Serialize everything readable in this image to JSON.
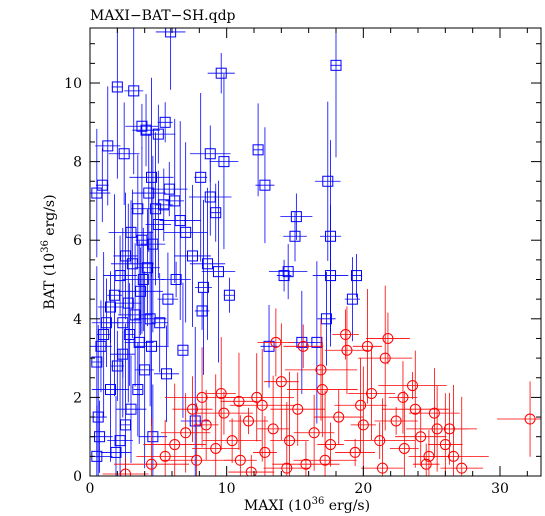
{
  "chart_data": {
    "type": "scatter",
    "title": "MAXI−BAT−SH.qdp",
    "xlabel": {
      "pre": "MAXI (10",
      "sup": "36",
      "post": " erg/s)"
    },
    "ylabel": {
      "pre": "BAT (10",
      "sup": "36",
      "post": " erg/s)"
    },
    "xlim": [
      0,
      33
    ],
    "ylim": [
      0,
      11.4
    ],
    "x_ticks": [
      "0",
      "10",
      "20",
      "30"
    ],
    "x_tick_values": [
      0,
      10,
      20,
      30
    ],
    "y_ticks": [
      "0",
      "2",
      "4",
      "6",
      "8",
      "10"
    ],
    "y_tick_values": [
      0,
      2,
      4,
      6,
      8,
      10
    ],
    "grid": false,
    "legend": "none",
    "series": [
      {
        "marker": "square",
        "color": "#0000ff",
        "points": [
          [
            0.5,
            7.2
          ],
          [
            0.9,
            7.4
          ],
          [
            1.3,
            8.4
          ],
          [
            2.0,
            9.9
          ],
          [
            2.5,
            8.2
          ],
          [
            3.2,
            9.8
          ],
          [
            3.8,
            8.9
          ],
          [
            4.1,
            8.8
          ],
          [
            5.0,
            8.7
          ],
          [
            5.9,
            11.3
          ],
          [
            5.5,
            9.0
          ],
          [
            4.5,
            7.6
          ],
          [
            3.5,
            6.8
          ],
          [
            3.0,
            6.2
          ],
          [
            2.6,
            5.6
          ],
          [
            2.2,
            5.1
          ],
          [
            1.8,
            4.6
          ],
          [
            1.5,
            4.3
          ],
          [
            1.2,
            3.9
          ],
          [
            1.0,
            3.6
          ],
          [
            0.8,
            3.3
          ],
          [
            0.5,
            2.9
          ],
          [
            0.6,
            1.5
          ],
          [
            0.7,
            1.0
          ],
          [
            0.5,
            0.5
          ],
          [
            1.5,
            2.2
          ],
          [
            2.0,
            2.8
          ],
          [
            2.4,
            3.1
          ],
          [
            2.9,
            3.6
          ],
          [
            3.3,
            4.1
          ],
          [
            3.7,
            4.7
          ],
          [
            4.2,
            5.3
          ],
          [
            4.6,
            5.9
          ],
          [
            5.0,
            6.4
          ],
          [
            5.4,
            6.9
          ],
          [
            5.8,
            7.3
          ],
          [
            6.2,
            7.0
          ],
          [
            6.6,
            6.5
          ],
          [
            7.0,
            6.2
          ],
          [
            7.5,
            5.6
          ],
          [
            6.3,
            5.0
          ],
          [
            5.7,
            4.5
          ],
          [
            5.1,
            3.9
          ],
          [
            4.5,
            3.3
          ],
          [
            4.0,
            2.7
          ],
          [
            3.5,
            2.2
          ],
          [
            3.0,
            1.7
          ],
          [
            2.6,
            1.3
          ],
          [
            2.2,
            0.9
          ],
          [
            1.9,
            0.6
          ],
          [
            8.1,
            7.6
          ],
          [
            8.8,
            7.1
          ],
          [
            9.2,
            6.7
          ],
          [
            8.6,
            5.4
          ],
          [
            9.4,
            5.2
          ],
          [
            8.3,
            4.8
          ],
          [
            8.2,
            4.2
          ],
          [
            10.2,
            4.6
          ],
          [
            9.8,
            8.0
          ],
          [
            8.8,
            8.2
          ],
          [
            9.6,
            10.25
          ],
          [
            12.8,
            7.4
          ],
          [
            12.3,
            8.3
          ],
          [
            13.1,
            3.3
          ],
          [
            14.5,
            5.2
          ],
          [
            14.2,
            5.1
          ],
          [
            15.1,
            6.6
          ],
          [
            15.0,
            6.1
          ],
          [
            15.5,
            3.4
          ],
          [
            16.6,
            3.4
          ],
          [
            17.4,
            7.5
          ],
          [
            17.6,
            6.1
          ],
          [
            17.6,
            5.1
          ],
          [
            17.3,
            4.0
          ],
          [
            18.0,
            10.45
          ],
          [
            19.5,
            5.1
          ],
          [
            19.2,
            4.5
          ],
          [
            6.8,
            3.2
          ],
          [
            5.6,
            2.6
          ],
          [
            7.7,
            1.4
          ],
          [
            4.6,
            1.0
          ],
          [
            3.8,
            6.0
          ],
          [
            4.3,
            7.2
          ],
          [
            3.1,
            5.4
          ],
          [
            2.8,
            4.4
          ],
          [
            3.9,
            5.0
          ],
          [
            4.8,
            6.8
          ],
          [
            2.4,
            3.9
          ],
          [
            3.6,
            3.4
          ],
          [
            4.4,
            4.0
          ]
        ]
      },
      {
        "marker": "circle",
        "color": "#ff0000",
        "points": [
          [
            2.6,
            0.05
          ],
          [
            4.5,
            0.3
          ],
          [
            5.5,
            0.5
          ],
          [
            6.2,
            0.8
          ],
          [
            7.0,
            1.1
          ],
          [
            7.8,
            0.4
          ],
          [
            8.5,
            1.3
          ],
          [
            9.2,
            0.7
          ],
          [
            9.8,
            1.6
          ],
          [
            10.4,
            0.9
          ],
          [
            11.0,
            0.4
          ],
          [
            11.6,
            1.4
          ],
          [
            12.2,
            2.0
          ],
          [
            12.8,
            0.6
          ],
          [
            13.4,
            1.2
          ],
          [
            14.0,
            2.4
          ],
          [
            14.6,
            0.9
          ],
          [
            15.2,
            1.7
          ],
          [
            15.8,
            0.3
          ],
          [
            16.4,
            1.1
          ],
          [
            17.0,
            2.2
          ],
          [
            17.6,
            0.8
          ],
          [
            18.2,
            1.5
          ],
          [
            18.8,
            3.2
          ],
          [
            19.4,
            0.6
          ],
          [
            20.0,
            1.3
          ],
          [
            20.6,
            2.1
          ],
          [
            21.2,
            0.9
          ],
          [
            21.8,
            3.5
          ],
          [
            22.4,
            1.4
          ],
          [
            23.0,
            0.7
          ],
          [
            23.6,
            2.3
          ],
          [
            24.2,
            1.0
          ],
          [
            24.8,
            0.5
          ],
          [
            25.4,
            1.2
          ],
          [
            26.0,
            0.8
          ],
          [
            26.6,
            0.5
          ],
          [
            27.2,
            0.2
          ],
          [
            32.2,
            1.45
          ],
          [
            18.7,
            3.6
          ],
          [
            20.3,
            3.3
          ],
          [
            21.6,
            3.0
          ],
          [
            13.6,
            3.4
          ],
          [
            15.6,
            3.3
          ],
          [
            16.9,
            2.7
          ],
          [
            12.6,
            1.8
          ],
          [
            10.9,
            1.9
          ],
          [
            9.6,
            2.1
          ],
          [
            8.2,
            2.0
          ],
          [
            7.5,
            1.7
          ],
          [
            19.8,
            1.8
          ],
          [
            22.9,
            2.0
          ],
          [
            23.8,
            1.7
          ],
          [
            25.2,
            1.6
          ],
          [
            26.3,
            1.2
          ],
          [
            24.6,
            0.3
          ],
          [
            21.4,
            0.2
          ],
          [
            17.2,
            0.4
          ],
          [
            14.4,
            0.2
          ],
          [
            11.8,
            0.1
          ]
        ]
      }
    ]
  }
}
